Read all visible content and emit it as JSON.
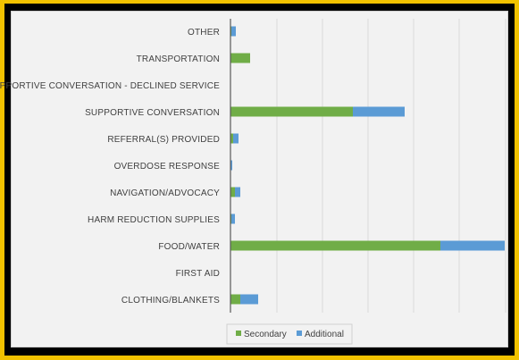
{
  "chart_data": {
    "type": "bar",
    "orientation": "horizontal",
    "stacked": true,
    "categories": [
      "OTHER",
      "TRANSPORTATION",
      "SUPPORTIVE CONVERSATION - DECLINED SERVICE",
      "SUPPORTIVE CONVERSATION",
      "REFERRAL(S) PROVIDED",
      "OVERDOSE RESPONSE",
      "NAVIGATION/ADVOCACY",
      "HARM REDUCTION SUPPLIES",
      "FOOD/WATER",
      "FIRST AID",
      "CLOTHING/BLANKETS"
    ],
    "series": [
      {
        "name": "Secondary",
        "color": "#70ad47",
        "values": [
          1,
          22,
          0,
          137,
          3,
          0,
          5,
          1,
          235,
          0,
          11
        ]
      },
      {
        "name": "Additional",
        "color": "#5b9bd5",
        "values": [
          5,
          0,
          0,
          58,
          6,
          2,
          6,
          4,
          72,
          0,
          20
        ]
      }
    ],
    "xlim": [
      0,
      310
    ],
    "grid": true,
    "legend": "bottom",
    "title": "",
    "xlabel": "",
    "ylabel": ""
  }
}
